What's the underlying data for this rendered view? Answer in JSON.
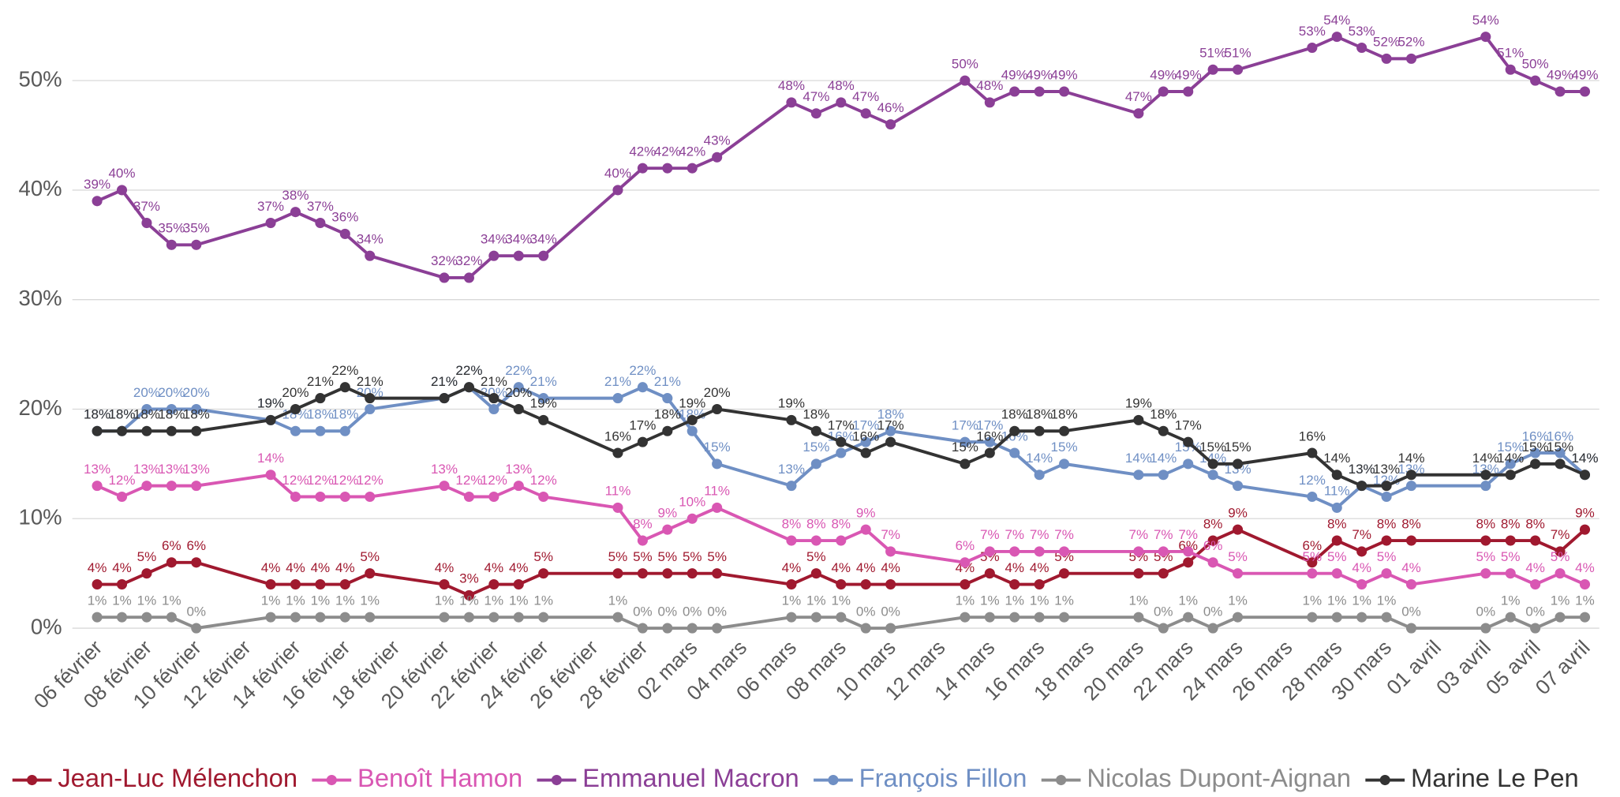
{
  "chart_data": {
    "type": "line",
    "categories": [
      "06 février",
      null,
      "08 février",
      null,
      "10 février",
      null,
      "12 février",
      null,
      "14 février",
      null,
      "16 février",
      null,
      "18 février",
      null,
      "20 février",
      null,
      "22 février",
      null,
      "24 février",
      null,
      "26 février",
      null,
      "28 février",
      null,
      "02 mars",
      null,
      "04 mars",
      null,
      "06 mars",
      null,
      "08 mars",
      null,
      "10 mars",
      null,
      "12 mars",
      null,
      "14 mars",
      null,
      "16 mars",
      null,
      "18 mars",
      null,
      "20 mars",
      null,
      "22 mars",
      null,
      "24 mars",
      null,
      "26 mars",
      null,
      "28 mars",
      null,
      "30 mars",
      null,
      "01 avril",
      null,
      "03 avril",
      null,
      "05 avril",
      null,
      "07 avril"
    ],
    "ylim": [
      0,
      55
    ],
    "yticks": [
      {
        "value": 0,
        "label": "0%"
      },
      {
        "value": 10,
        "label": "10%"
      },
      {
        "value": 20,
        "label": "20%"
      },
      {
        "value": 30,
        "label": "30%"
      },
      {
        "value": 40,
        "label": "40%"
      },
      {
        "value": 50,
        "label": "50%"
      }
    ],
    "grid": true,
    "legend": "bottom",
    "series": [
      {
        "name": "Jean-Luc Mélenchon",
        "color": "#a0192f",
        "values": [
          4,
          4,
          5,
          6,
          6,
          null,
          null,
          4,
          4,
          4,
          4,
          5,
          null,
          null,
          4,
          3,
          4,
          4,
          5,
          null,
          null,
          5,
          5,
          5,
          5,
          5,
          null,
          null,
          4,
          5,
          4,
          4,
          4,
          null,
          null,
          4,
          5,
          4,
          4,
          5,
          null,
          null,
          5,
          5,
          6,
          8,
          9,
          null,
          null,
          6,
          8,
          7,
          8,
          8,
          null,
          null,
          8,
          8,
          8,
          7,
          9
        ],
        "value_labels": [
          "4%",
          "4%",
          "5%",
          "6%",
          "6%",
          null,
          null,
          "4%",
          "4%",
          "4%",
          "4%",
          "5%",
          null,
          null,
          "4%",
          "3%",
          "4%",
          "4%",
          "5%",
          null,
          null,
          "5%",
          "5%",
          "5%",
          "5%",
          "5%",
          null,
          null,
          "4%",
          "5%",
          "4%",
          "4%",
          "4%",
          null,
          null,
          "4%",
          "5%",
          "4%",
          "4%",
          "5%",
          null,
          null,
          "5%",
          "5%",
          "6%",
          "8%",
          "9%",
          null,
          null,
          "6%",
          "8%",
          "7%",
          "8%",
          "8%",
          null,
          null,
          "8%",
          "8%",
          "8%",
          "7%",
          "9%"
        ]
      },
      {
        "name": "Benoît Hamon",
        "color": "#d957b3",
        "values": [
          13,
          12,
          13,
          13,
          13,
          null,
          null,
          14,
          12,
          12,
          12,
          12,
          null,
          null,
          13,
          12,
          12,
          13,
          12,
          null,
          null,
          11,
          8,
          9,
          10,
          11,
          null,
          null,
          8,
          8,
          8,
          9,
          7,
          null,
          null,
          6,
          7,
          7,
          7,
          7,
          null,
          null,
          7,
          7,
          7,
          6,
          5,
          null,
          null,
          5,
          5,
          4,
          5,
          4,
          null,
          null,
          5,
          5,
          4,
          5,
          4
        ],
        "value_labels": [
          "13%",
          "12%",
          "13%",
          "13%",
          "13%",
          null,
          null,
          "14%",
          "12%",
          "12%",
          "12%",
          "12%",
          null,
          null,
          "13%",
          "12%",
          "12%",
          "13%",
          "12%",
          null,
          null,
          "11%",
          "8%",
          "9%",
          "10%",
          "11%",
          null,
          null,
          "8%",
          "8%",
          "8%",
          "9%",
          "7%",
          null,
          null,
          "6%",
          "7%",
          "7%",
          "7%",
          "7%",
          null,
          null,
          "7%",
          "7%",
          "7%",
          "6%",
          "5%",
          null,
          null,
          "5%",
          "5%",
          "4%",
          "5%",
          "4%",
          null,
          null,
          "5%",
          "5%",
          "4%",
          "5%",
          "4%"
        ]
      },
      {
        "name": "Emmanuel Macron",
        "color": "#8b3f96",
        "values": [
          39,
          40,
          37,
          35,
          35,
          null,
          null,
          37,
          38,
          37,
          36,
          34,
          null,
          null,
          32,
          32,
          34,
          34,
          34,
          null,
          null,
          40,
          42,
          42,
          42,
          43,
          null,
          null,
          48,
          47,
          48,
          47,
          46,
          null,
          null,
          50,
          48,
          49,
          49,
          49,
          null,
          null,
          47,
          49,
          49,
          51,
          51,
          null,
          null,
          53,
          54,
          53,
          52,
          52,
          null,
          null,
          54,
          51,
          50,
          49,
          49
        ],
        "value_labels": [
          "39%",
          "40%",
          "37%",
          "35%",
          "35%",
          null,
          null,
          "37%",
          "38%",
          "37%",
          "36%",
          "34%",
          null,
          null,
          "32%",
          "32%",
          "34%",
          "34%",
          "34%",
          null,
          null,
          "40%",
          "42%",
          "42%",
          "42%",
          "43%",
          null,
          null,
          "48%",
          "47%",
          "48%",
          "47%",
          "46%",
          null,
          null,
          "50%",
          "48%",
          "49%",
          "49%",
          "49%",
          null,
          null,
          "47%",
          "49%",
          "49%",
          "51%",
          "51%",
          null,
          null,
          "53%",
          "54%",
          "53%",
          "52%",
          "52%",
          null,
          null,
          "54%",
          "51%",
          "50%",
          "49%",
          "49%"
        ]
      },
      {
        "name": "François Fillon",
        "color": "#6f8fc4",
        "values": [
          18,
          18,
          20,
          20,
          20,
          null,
          null,
          19,
          18,
          18,
          18,
          20,
          null,
          null,
          21,
          22,
          20,
          22,
          21,
          null,
          null,
          21,
          22,
          21,
          18,
          15,
          null,
          null,
          13,
          15,
          16,
          17,
          18,
          null,
          null,
          17,
          17,
          16,
          14,
          15,
          null,
          null,
          14,
          14,
          15,
          14,
          13,
          null,
          null,
          12,
          11,
          13,
          12,
          13,
          null,
          null,
          13,
          15,
          16,
          16,
          14
        ],
        "value_labels": [
          "18%",
          "18%",
          "20%",
          "20%",
          "20%",
          null,
          null,
          "19%",
          "18%",
          "18%",
          "18%",
          "20%",
          null,
          null,
          "21%",
          "22%",
          "20%",
          "22%",
          "21%",
          null,
          null,
          "21%",
          "22%",
          "21%",
          "18%",
          "15%",
          null,
          null,
          "13%",
          "15%",
          "16%",
          "17%",
          "18%",
          null,
          null,
          "17%",
          "17%",
          "16%",
          "14%",
          "15%",
          null,
          null,
          "14%",
          "14%",
          "15%",
          "14%",
          "13%",
          null,
          null,
          "12%",
          "11%",
          "13%",
          "12%",
          "13%",
          null,
          null,
          "13%",
          "15%",
          "16%",
          "16%",
          "14%"
        ]
      },
      {
        "name": "Nicolas Dupont-Aignan",
        "color": "#8c8c8c",
        "values": [
          1,
          1,
          1,
          1,
          0,
          null,
          null,
          1,
          1,
          1,
          1,
          1,
          null,
          null,
          1,
          1,
          1,
          1,
          1,
          null,
          null,
          1,
          0,
          0,
          0,
          0,
          null,
          null,
          1,
          1,
          1,
          0,
          0,
          null,
          null,
          1,
          1,
          1,
          1,
          1,
          null,
          null,
          1,
          0,
          1,
          0,
          1,
          null,
          null,
          1,
          1,
          1,
          1,
          0,
          null,
          null,
          0,
          1,
          0,
          1,
          1
        ],
        "value_labels": [
          "1%",
          "1%",
          "1%",
          "1%",
          "0%",
          null,
          null,
          "1%",
          "1%",
          "1%",
          "1%",
          "1%",
          null,
          null,
          "1%",
          "1%",
          "1%",
          "1%",
          "1%",
          null,
          null,
          "1%",
          "0%",
          "0%",
          "0%",
          "0%",
          null,
          null,
          "1%",
          "1%",
          "1%",
          "0%",
          "0%",
          null,
          null,
          "1%",
          "1%",
          "1%",
          "1%",
          "1%",
          null,
          null,
          "1%",
          "0%",
          "1%",
          "0%",
          "1%",
          null,
          null,
          "1%",
          "1%",
          "1%",
          "1%",
          "0%",
          null,
          null,
          "0%",
          "1%",
          "0%",
          "1%",
          "1%"
        ]
      },
      {
        "name": "Marine Le Pen",
        "color": "#333333",
        "values": [
          18,
          18,
          18,
          18,
          18,
          null,
          null,
          19,
          20,
          21,
          22,
          21,
          null,
          null,
          21,
          22,
          21,
          20,
          19,
          null,
          null,
          16,
          17,
          18,
          19,
          20,
          null,
          null,
          19,
          18,
          17,
          16,
          17,
          null,
          null,
          15,
          16,
          18,
          18,
          18,
          null,
          null,
          19,
          18,
          17,
          15,
          15,
          null,
          null,
          16,
          14,
          13,
          13,
          14,
          null,
          null,
          14,
          14,
          15,
          15,
          14
        ],
        "value_labels": [
          "18%",
          "18%",
          "18%",
          "18%",
          "18%",
          null,
          null,
          "19%",
          "20%",
          "21%",
          "22%",
          "21%",
          null,
          null,
          "21%",
          "22%",
          "21%",
          "20%",
          "19%",
          null,
          null,
          "16%",
          "17%",
          "18%",
          "19%",
          "20%",
          null,
          null,
          "19%",
          "18%",
          "17%",
          "16%",
          "17%",
          null,
          null,
          "15%",
          "16%",
          "18%",
          "18%",
          "18%",
          null,
          null,
          "19%",
          "18%",
          "17%",
          "15%",
          "15%",
          null,
          null,
          "16%",
          "14%",
          "13%",
          "13%",
          "14%",
          null,
          null,
          "14%",
          "14%",
          "15%",
          "15%",
          "14%"
        ]
      }
    ]
  }
}
